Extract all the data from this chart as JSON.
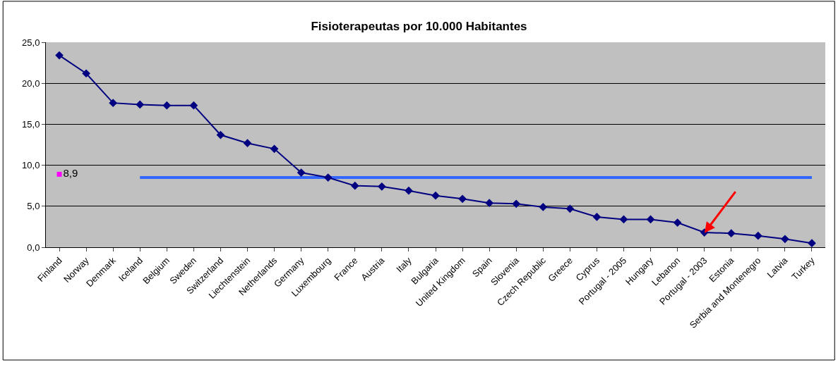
{
  "chart_data": {
    "type": "line",
    "title": "Fisioterapeutas por 10.000 Habitantes",
    "categories": [
      "Finland",
      "Norway",
      "Denmark",
      "Iceland",
      "Belgium",
      "Sweden",
      "Switzerland",
      "Liechtenstein",
      "Netherlands",
      "Germany",
      "Luxembourg",
      "France",
      "Austria",
      "Italy",
      "Bulgaria",
      "United Kingdom",
      "Spain",
      "Slovenia",
      "Czech Republic",
      "Greece",
      "Cyprus",
      "Portugal - 2005",
      "Hungary",
      "Lebanon",
      "Portugal - 2003",
      "Estonia",
      "Serbia and Montenegro",
      "Latvia",
      "Turkey"
    ],
    "series": [
      {
        "color": "#000080",
        "marker": "diamond",
        "values": [
          23.4,
          21.2,
          17.6,
          17.4,
          17.3,
          17.3,
          13.7,
          12.7,
          12.0,
          9.1,
          8.5,
          7.5,
          7.4,
          6.9,
          6.3,
          5.9,
          5.4,
          5.3,
          4.9,
          4.7,
          3.7,
          3.4,
          3.4,
          3.0,
          1.8,
          1.7,
          1.4,
          1.0,
          0.5
        ]
      },
      {
        "color": "#3366ff",
        "marker": "none",
        "values": [
          null,
          null,
          null,
          8.5,
          8.5,
          8.5,
          8.5,
          8.5,
          8.5,
          8.5,
          8.5,
          8.5,
          8.5,
          8.5,
          8.5,
          8.5,
          8.5,
          8.5,
          8.5,
          8.5,
          8.5,
          8.5,
          8.5,
          8.5,
          8.5,
          8.5,
          8.5,
          8.5,
          8.5
        ]
      },
      {
        "type": "scatter",
        "color": "#ff00ff",
        "marker": "square",
        "values": [
          8.9,
          null,
          null,
          null,
          null,
          null,
          null,
          null,
          null,
          null,
          null,
          null,
          null,
          null,
          null,
          null,
          null,
          null,
          null,
          null,
          null,
          null,
          null,
          null,
          null,
          null,
          null,
          null,
          null
        ],
        "value_labels": [
          "8,9",
          null,
          null,
          null,
          null,
          null,
          null,
          null,
          null,
          null,
          null,
          null,
          null,
          null,
          null,
          null,
          null,
          null,
          null,
          null,
          null,
          null,
          null,
          null,
          null,
          null,
          null,
          null,
          null
        ]
      }
    ],
    "ylim": [
      0,
      25
    ],
    "yticks": [
      {
        "value": 0,
        "label": "0,0"
      },
      {
        "value": 5,
        "label": "5,0"
      },
      {
        "value": 10,
        "label": "10,0"
      },
      {
        "value": 15,
        "label": "15,0"
      },
      {
        "value": 20,
        "label": "20,0"
      },
      {
        "value": 25,
        "label": "25,0"
      }
    ],
    "grid": "y"
  }
}
